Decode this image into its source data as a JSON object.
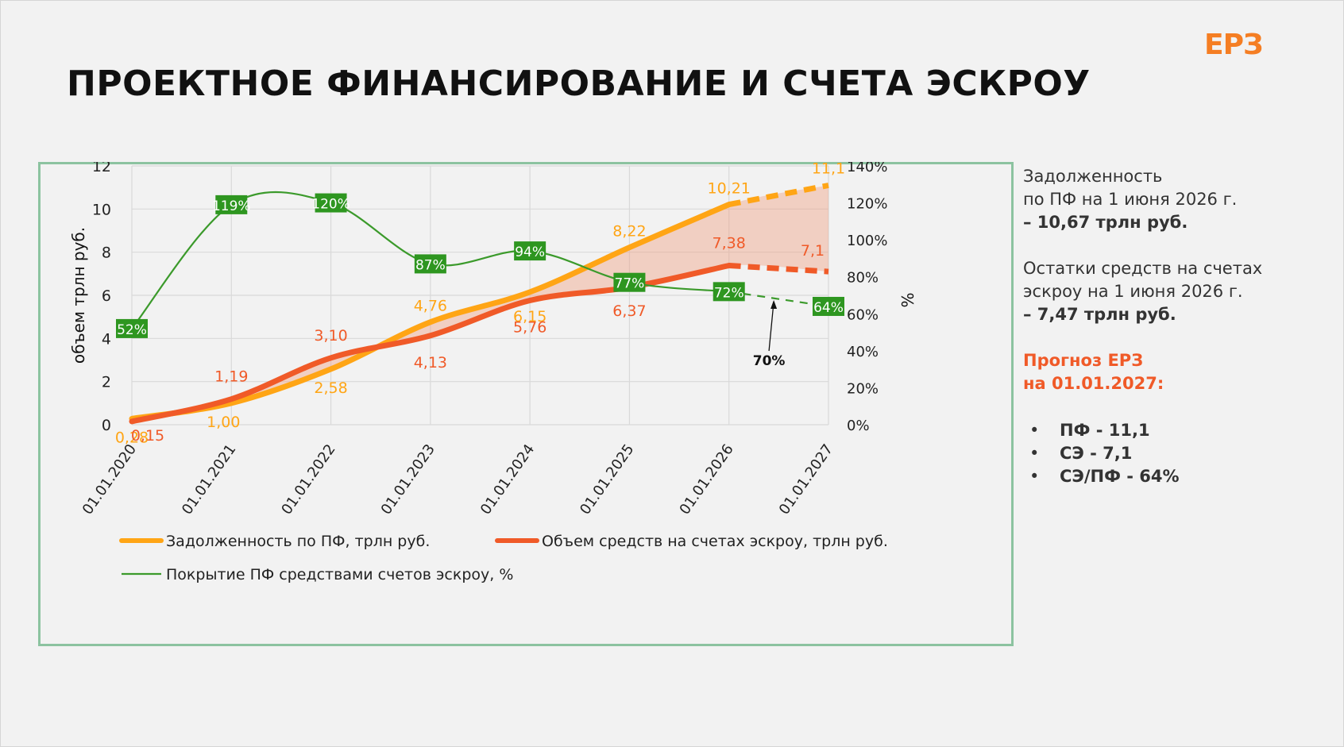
{
  "brand": {
    "logo": "ЕРЗ",
    "accent": "#f57e23"
  },
  "page_title": "ПРОЕКТНОЕ ФИНАНСИРОВАНИЕ И СЧЕТА ЭСКРОУ",
  "side_panel": {
    "debt_title": "Задолженность",
    "debt_sub": "по ПФ на 1 июня 2026 г.",
    "debt_value": "– 10,67 трлн руб.",
    "escrow_title": "Остатки средств на счетах",
    "escrow_sub": "эскроу на 1 июня 2026 г.",
    "escrow_value": "– 7,47 трлн руб.",
    "forecast_title": "Прогноз ЕРЗ",
    "forecast_date": "на 01.01.2027:",
    "forecast_items": [
      "ПФ - 11,1",
      "СЭ - 7,1",
      "СЭ/ПФ - 64%"
    ]
  },
  "chart_data": {
    "type": "line",
    "categories": [
      "01.01.2020",
      "01.01.2021",
      "01.01.2022",
      "01.01.2023",
      "01.01.2024",
      "01.01.2025",
      "01.01.2026",
      "01.01.2027"
    ],
    "ylabel": "объем трлн руб.",
    "y2label": "%",
    "ylim": [
      0,
      12
    ],
    "y_ticks": [
      "0",
      "2",
      "4",
      "6",
      "8",
      "10",
      "12"
    ],
    "y2lim": [
      0,
      140
    ],
    "y2_ticks": [
      "0%",
      "20%",
      "40%",
      "60%",
      "80%",
      "100%",
      "120%",
      "140%"
    ],
    "grid": true,
    "legend_position": "bottom",
    "series": [
      {
        "name": "Задолженность по ПФ, трлн руб.",
        "color": "#ffa515",
        "axis": "left",
        "values": [
          0.28,
          1.0,
          2.58,
          4.76,
          6.15,
          8.22,
          10.21,
          11.1
        ],
        "labels": [
          "0,28",
          "1,00",
          "2,58",
          "4,76",
          "6,15",
          "8,22",
          "10,21",
          "11,1"
        ],
        "forecast_from_index": 6
      },
      {
        "name": "Объем средств на счетах эскроу, трлн руб.",
        "color": "#f05a28",
        "axis": "left",
        "values": [
          0.15,
          1.19,
          3.1,
          4.13,
          5.76,
          6.37,
          7.38,
          7.1
        ],
        "labels": [
          "0,15",
          "1,19",
          "3,10",
          "4,13",
          "5,76",
          "6,37",
          "7,38",
          "7,1"
        ],
        "forecast_from_index": 6
      },
      {
        "name": "Покрытие ПФ средствами счетов эскроу, %",
        "color": "#3b9a2b",
        "axis": "right",
        "values": [
          52,
          119,
          120,
          87,
          94,
          77,
          72,
          64
        ],
        "labels": [
          "52%",
          "119%",
          "120%",
          "87%",
          "94%",
          "77%",
          "72%",
          "64%"
        ],
        "forecast_from_index": 6
      }
    ],
    "annotation": {
      "text": "70%",
      "x_index": 6.45,
      "value": 70
    }
  }
}
